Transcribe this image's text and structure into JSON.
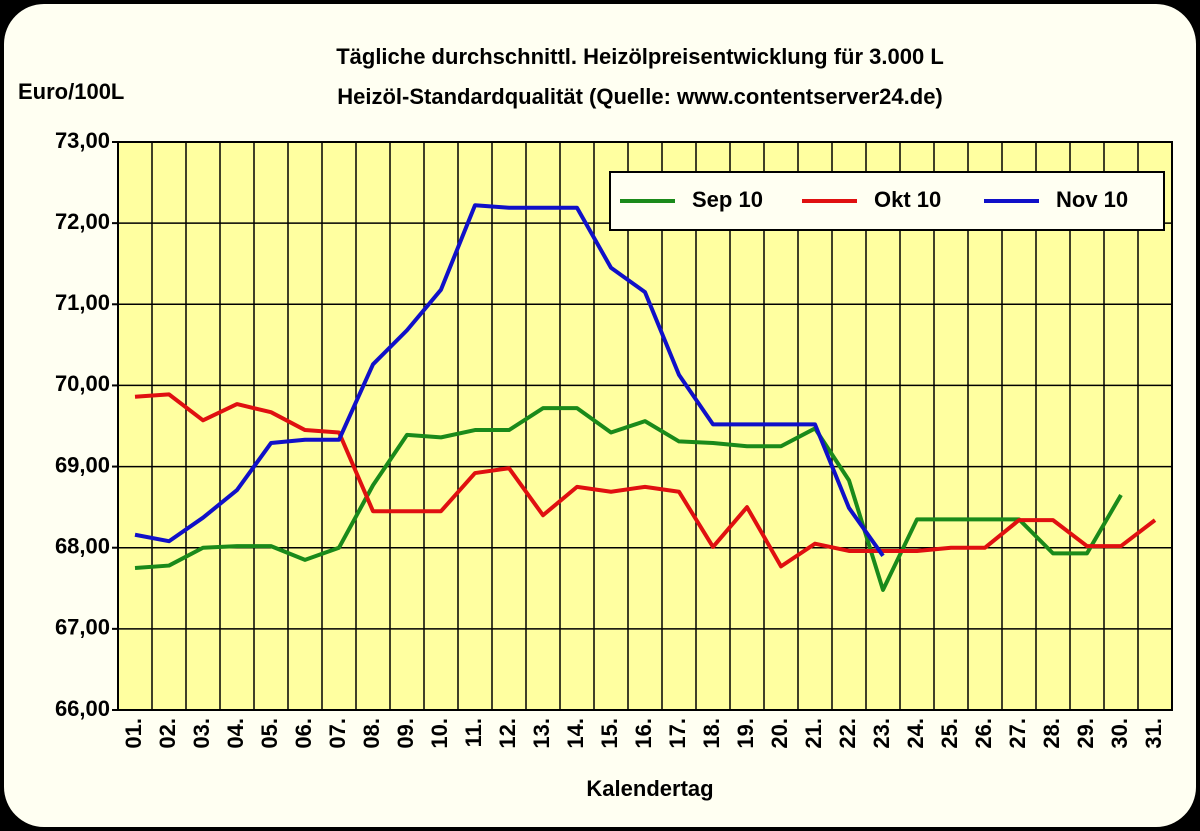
{
  "chart_data": {
    "type": "line",
    "title": "Tägliche durchschnittl. Heizölpreisentwicklung für 3.000 L",
    "subtitle": "Heizöl-Standardqualität (Quelle: www.contentserver24.de)",
    "y_label": "Euro/100L",
    "x_label": "Kalendertag",
    "categories": [
      "01.",
      "02.",
      "03.",
      "04.",
      "05.",
      "06.",
      "07.",
      "08.",
      "09.",
      "10.",
      "11.",
      "12.",
      "13.",
      "14.",
      "15.",
      "16.",
      "17.",
      "18.",
      "19.",
      "20.",
      "21.",
      "22.",
      "23.",
      "24.",
      "25.",
      "26.",
      "27.",
      "28.",
      "29.",
      "30.",
      "31."
    ],
    "series": [
      {
        "name": "Sep 10",
        "color": "#1a8a1a",
        "values": [
          67.75,
          67.78,
          68.0,
          68.02,
          68.02,
          67.85,
          68.0,
          68.77,
          69.39,
          69.36,
          69.45,
          69.45,
          69.72,
          69.72,
          69.42,
          69.56,
          69.31,
          69.29,
          69.25,
          69.25,
          69.47,
          68.83,
          67.48,
          68.35,
          68.35,
          68.35,
          68.35,
          67.93,
          67.93,
          68.65,
          null
        ]
      },
      {
        "name": "Okt 10",
        "color": "#e01010",
        "values": [
          69.86,
          69.89,
          69.57,
          69.77,
          69.67,
          69.45,
          69.42,
          68.45,
          68.45,
          68.45,
          68.92,
          68.98,
          68.4,
          68.75,
          68.69,
          68.75,
          68.69,
          68.01,
          68.5,
          67.77,
          68.05,
          67.96,
          67.96,
          67.96,
          68.0,
          68.0,
          68.34,
          68.34,
          68.02,
          68.02,
          68.34
        ]
      },
      {
        "name": "Nov 10",
        "color": "#1010c8",
        "values": [
          68.16,
          68.08,
          68.37,
          68.71,
          69.29,
          69.33,
          69.33,
          70.26,
          70.68,
          71.18,
          72.22,
          72.19,
          72.19,
          72.19,
          71.45,
          71.15,
          70.13,
          69.52,
          69.52,
          69.52,
          69.52,
          68.49,
          67.9,
          null,
          null,
          null,
          null,
          null,
          null,
          null,
          null
        ]
      }
    ],
    "ylim": [
      66,
      73
    ],
    "yticks": [
      {
        "value": 66,
        "label": "66,00"
      },
      {
        "value": 67,
        "label": "67,00"
      },
      {
        "value": 68,
        "label": "68,00"
      },
      {
        "value": 69,
        "label": "69,00"
      },
      {
        "value": 70,
        "label": "70,00"
      },
      {
        "value": 71,
        "label": "71,00"
      },
      {
        "value": 72,
        "label": "72,00"
      },
      {
        "value": 73,
        "label": "73,00"
      }
    ],
    "grid": true,
    "legend_position": "top-right"
  }
}
